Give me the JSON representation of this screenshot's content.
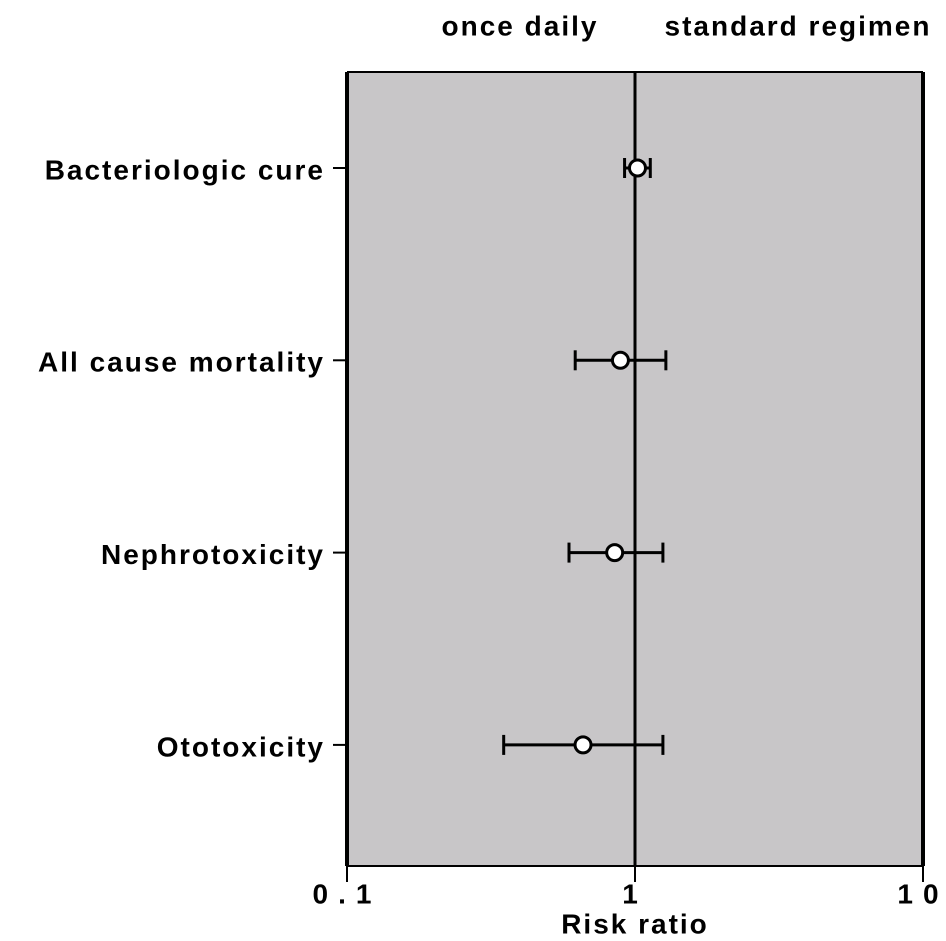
{
  "chart_data": {
    "type": "forest",
    "annotations": [
      "once daily",
      "standard regimen"
    ],
    "xlabel": "Risk ratio",
    "categories": [
      "Bacteriologic cure",
      "All cause mortality",
      "Nephrotoxicity",
      "Ototoxicity"
    ],
    "values": [
      1.02,
      0.89,
      0.85,
      0.66
    ],
    "lower": [
      0.92,
      0.62,
      0.59,
      0.35
    ],
    "upper": [
      1.13,
      1.28,
      1.25,
      1.25
    ],
    "xlim": [
      0.1,
      10
    ],
    "xticks": [
      0.1,
      1,
      10
    ],
    "xscale": "log",
    "reference": 1,
    "background": "#c8c6c8"
  }
}
